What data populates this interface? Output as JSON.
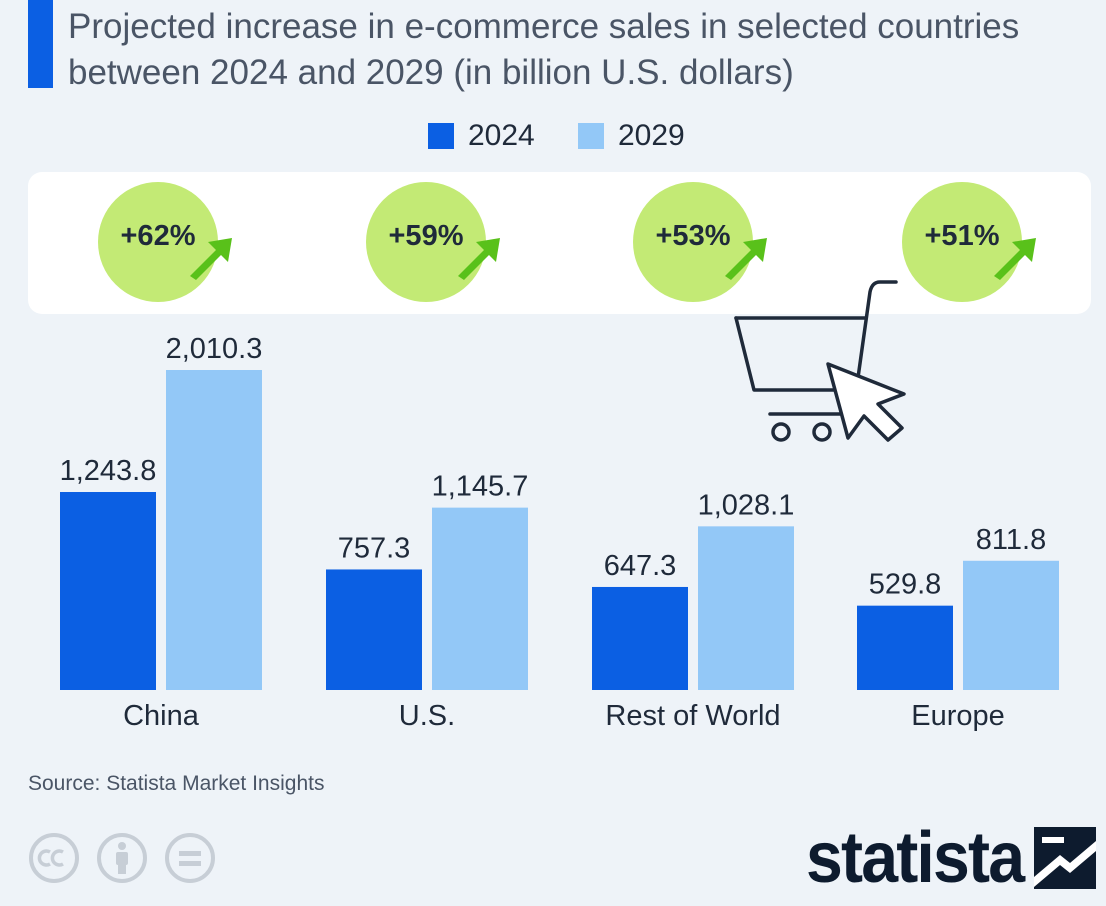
{
  "title": "Projected increase in e-commerce sales in selected countries between 2024 and 2029 (in billion U.S. dollars)",
  "colors": {
    "accent": "#0b5fe3",
    "series_2024": "#0b5fe3",
    "series_2029": "#93c8f7",
    "badge": "#c3ea75",
    "arrow": "#59c11a",
    "background": "#eef3f8",
    "panel": "#ffffff",
    "icon_stroke": "#1f2a3a",
    "license_grey": "#c7ced6",
    "brand": "#0d1b2e"
  },
  "growth": [
    {
      "label": "+62%"
    },
    {
      "label": "+59%"
    },
    {
      "label": "+53%"
    },
    {
      "label": "+51%"
    }
  ],
  "icons": {
    "cart": "shopping-cart-icon",
    "cursor": "cursor-icon",
    "growth_arrow": "arrow-up-right-icon",
    "license": [
      "cc-icon",
      "attribution-icon",
      "no-derivatives-icon"
    ],
    "brand_mark": "statista-logo-icon"
  },
  "chart_data": {
    "type": "bar",
    "title": "Projected increase in e-commerce sales in selected countries between 2024 and 2029 (in billion U.S. dollars)",
    "categories": [
      "China",
      "U.S.",
      "Rest of World",
      "Europe"
    ],
    "series": [
      {
        "name": "2024",
        "values": [
          1243.8,
          757.3,
          647.3,
          529.8
        ],
        "labels": [
          "1,243.8",
          "757.3",
          "647.3",
          "529.8"
        ]
      },
      {
        "name": "2029",
        "values": [
          2010.3,
          1145.7,
          1028.1,
          811.8
        ],
        "labels": [
          "2,010.3",
          "1,145.7",
          "1,028.1",
          "811.8"
        ]
      }
    ],
    "xlabel": "",
    "ylabel": "",
    "ylim": [
      0,
      2010.3
    ],
    "grid": false,
    "legend": "top-center"
  },
  "source": "Source: Statista Market Insights",
  "brand": {
    "name": "statista"
  }
}
